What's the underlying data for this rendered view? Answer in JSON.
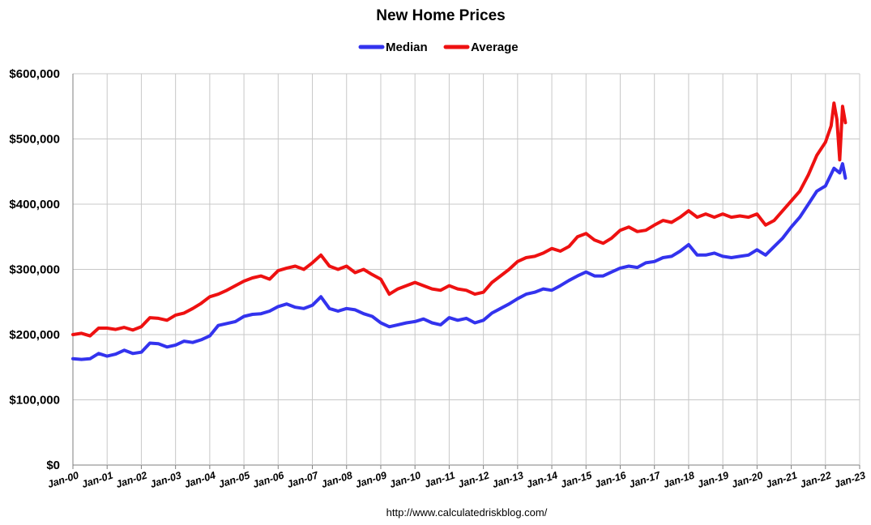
{
  "colors": {
    "median": "#3333ee",
    "average": "#ee1111",
    "grid": "#c8c8c8",
    "axis": "#7f7f7f"
  },
  "chart_data": {
    "type": "line",
    "title": "New Home Prices",
    "source": "http://www.calculatedriskblog.com/",
    "legend_position": "top-center",
    "grid": true,
    "ylim": [
      0,
      600000
    ],
    "yticks": [
      0,
      100000,
      200000,
      300000,
      400000,
      500000,
      600000
    ],
    "ytick_labels": [
      "$0",
      "$100,000",
      "$200,000",
      "$300,000",
      "$400,000",
      "$500,000",
      "$600,000"
    ],
    "xlim": [
      "2000-01",
      "2023-01"
    ],
    "xtick_labels": [
      "Jan-00",
      "Jan-01",
      "Jan-02",
      "Jan-03",
      "Jan-04",
      "Jan-05",
      "Jan-06",
      "Jan-07",
      "Jan-08",
      "Jan-09",
      "Jan-10",
      "Jan-11",
      "Jan-12",
      "Jan-13",
      "Jan-14",
      "Jan-15",
      "Jan-16",
      "Jan-17",
      "Jan-18",
      "Jan-19",
      "Jan-20",
      "Jan-21",
      "Jan-22",
      "Jan-23"
    ],
    "series": [
      {
        "name": "Median",
        "color": "#3333ee",
        "points": [
          [
            "2000-01",
            163000
          ],
          [
            "2000-04",
            162000
          ],
          [
            "2000-07",
            163000
          ],
          [
            "2000-10",
            171000
          ],
          [
            "2001-01",
            167000
          ],
          [
            "2001-04",
            170000
          ],
          [
            "2001-07",
            176000
          ],
          [
            "2001-10",
            171000
          ],
          [
            "2002-01",
            173000
          ],
          [
            "2002-04",
            187000
          ],
          [
            "2002-07",
            186000
          ],
          [
            "2002-10",
            181000
          ],
          [
            "2003-01",
            184000
          ],
          [
            "2003-04",
            190000
          ],
          [
            "2003-07",
            188000
          ],
          [
            "2003-10",
            192000
          ],
          [
            "2004-01",
            198000
          ],
          [
            "2004-04",
            214000
          ],
          [
            "2004-07",
            217000
          ],
          [
            "2004-10",
            220000
          ],
          [
            "2005-01",
            228000
          ],
          [
            "2005-04",
            231000
          ],
          [
            "2005-07",
            232000
          ],
          [
            "2005-10",
            236000
          ],
          [
            "2006-01",
            243000
          ],
          [
            "2006-04",
            247000
          ],
          [
            "2006-07",
            242000
          ],
          [
            "2006-10",
            240000
          ],
          [
            "2007-01",
            245000
          ],
          [
            "2007-04",
            258000
          ],
          [
            "2007-07",
            240000
          ],
          [
            "2007-10",
            236000
          ],
          [
            "2008-01",
            240000
          ],
          [
            "2008-04",
            238000
          ],
          [
            "2008-07",
            232000
          ],
          [
            "2008-10",
            228000
          ],
          [
            "2009-01",
            218000
          ],
          [
            "2009-04",
            212000
          ],
          [
            "2009-07",
            215000
          ],
          [
            "2009-10",
            218000
          ],
          [
            "2010-01",
            220000
          ],
          [
            "2010-04",
            224000
          ],
          [
            "2010-07",
            218000
          ],
          [
            "2010-10",
            215000
          ],
          [
            "2011-01",
            226000
          ],
          [
            "2011-04",
            222000
          ],
          [
            "2011-07",
            225000
          ],
          [
            "2011-10",
            218000
          ],
          [
            "2012-01",
            222000
          ],
          [
            "2012-04",
            233000
          ],
          [
            "2012-07",
            240000
          ],
          [
            "2012-10",
            247000
          ],
          [
            "2013-01",
            255000
          ],
          [
            "2013-04",
            262000
          ],
          [
            "2013-07",
            265000
          ],
          [
            "2013-10",
            270000
          ],
          [
            "2014-01",
            268000
          ],
          [
            "2014-04",
            275000
          ],
          [
            "2014-07",
            283000
          ],
          [
            "2014-10",
            290000
          ],
          [
            "2015-01",
            296000
          ],
          [
            "2015-04",
            290000
          ],
          [
            "2015-07",
            290000
          ],
          [
            "2015-10",
            296000
          ],
          [
            "2016-01",
            302000
          ],
          [
            "2016-04",
            305000
          ],
          [
            "2016-07",
            303000
          ],
          [
            "2016-10",
            310000
          ],
          [
            "2017-01",
            312000
          ],
          [
            "2017-04",
            318000
          ],
          [
            "2017-07",
            320000
          ],
          [
            "2017-10",
            328000
          ],
          [
            "2018-01",
            338000
          ],
          [
            "2018-04",
            322000
          ],
          [
            "2018-07",
            322000
          ],
          [
            "2018-10",
            325000
          ],
          [
            "2019-01",
            320000
          ],
          [
            "2019-04",
            318000
          ],
          [
            "2019-07",
            320000
          ],
          [
            "2019-10",
            322000
          ],
          [
            "2020-01",
            330000
          ],
          [
            "2020-04",
            322000
          ],
          [
            "2020-07",
            335000
          ],
          [
            "2020-10",
            348000
          ],
          [
            "2021-01",
            365000
          ],
          [
            "2021-04",
            380000
          ],
          [
            "2021-07",
            400000
          ],
          [
            "2021-10",
            420000
          ],
          [
            "2022-01",
            428000
          ],
          [
            "2022-04",
            455000
          ],
          [
            "2022-06",
            448000
          ],
          [
            "2022-07",
            462000
          ],
          [
            "2022-08",
            440000
          ]
        ]
      },
      {
        "name": "Average",
        "color": "#ee1111",
        "points": [
          [
            "2000-01",
            200000
          ],
          [
            "2000-04",
            202000
          ],
          [
            "2000-07",
            198000
          ],
          [
            "2000-10",
            210000
          ],
          [
            "2001-01",
            210000
          ],
          [
            "2001-04",
            208000
          ],
          [
            "2001-07",
            211000
          ],
          [
            "2001-10",
            207000
          ],
          [
            "2002-01",
            212000
          ],
          [
            "2002-04",
            226000
          ],
          [
            "2002-07",
            225000
          ],
          [
            "2002-10",
            222000
          ],
          [
            "2003-01",
            230000
          ],
          [
            "2003-04",
            233000
          ],
          [
            "2003-07",
            240000
          ],
          [
            "2003-10",
            248000
          ],
          [
            "2004-01",
            258000
          ],
          [
            "2004-04",
            262000
          ],
          [
            "2004-07",
            268000
          ],
          [
            "2004-10",
            275000
          ],
          [
            "2005-01",
            282000
          ],
          [
            "2005-04",
            287000
          ],
          [
            "2005-07",
            290000
          ],
          [
            "2005-10",
            285000
          ],
          [
            "2006-01",
            298000
          ],
          [
            "2006-04",
            302000
          ],
          [
            "2006-07",
            305000
          ],
          [
            "2006-10",
            300000
          ],
          [
            "2007-01",
            310000
          ],
          [
            "2007-04",
            322000
          ],
          [
            "2007-07",
            305000
          ],
          [
            "2007-10",
            300000
          ],
          [
            "2008-01",
            305000
          ],
          [
            "2008-04",
            295000
          ],
          [
            "2008-07",
            300000
          ],
          [
            "2008-10",
            292000
          ],
          [
            "2009-01",
            285000
          ],
          [
            "2009-04",
            262000
          ],
          [
            "2009-07",
            270000
          ],
          [
            "2009-10",
            275000
          ],
          [
            "2010-01",
            280000
          ],
          [
            "2010-04",
            275000
          ],
          [
            "2010-07",
            270000
          ],
          [
            "2010-10",
            268000
          ],
          [
            "2011-01",
            275000
          ],
          [
            "2011-04",
            270000
          ],
          [
            "2011-07",
            268000
          ],
          [
            "2011-10",
            262000
          ],
          [
            "2012-01",
            265000
          ],
          [
            "2012-04",
            280000
          ],
          [
            "2012-07",
            290000
          ],
          [
            "2012-10",
            300000
          ],
          [
            "2013-01",
            312000
          ],
          [
            "2013-04",
            318000
          ],
          [
            "2013-07",
            320000
          ],
          [
            "2013-10",
            325000
          ],
          [
            "2014-01",
            332000
          ],
          [
            "2014-04",
            328000
          ],
          [
            "2014-07",
            335000
          ],
          [
            "2014-10",
            350000
          ],
          [
            "2015-01",
            355000
          ],
          [
            "2015-04",
            345000
          ],
          [
            "2015-07",
            340000
          ],
          [
            "2015-10",
            348000
          ],
          [
            "2016-01",
            360000
          ],
          [
            "2016-04",
            365000
          ],
          [
            "2016-07",
            358000
          ],
          [
            "2016-10",
            360000
          ],
          [
            "2017-01",
            368000
          ],
          [
            "2017-04",
            375000
          ],
          [
            "2017-07",
            372000
          ],
          [
            "2017-10",
            380000
          ],
          [
            "2018-01",
            390000
          ],
          [
            "2018-04",
            380000
          ],
          [
            "2018-07",
            385000
          ],
          [
            "2018-10",
            380000
          ],
          [
            "2019-01",
            385000
          ],
          [
            "2019-04",
            380000
          ],
          [
            "2019-07",
            382000
          ],
          [
            "2019-10",
            380000
          ],
          [
            "2020-01",
            385000
          ],
          [
            "2020-04",
            368000
          ],
          [
            "2020-07",
            375000
          ],
          [
            "2020-10",
            390000
          ],
          [
            "2021-01",
            405000
          ],
          [
            "2021-04",
            420000
          ],
          [
            "2021-07",
            445000
          ],
          [
            "2021-10",
            475000
          ],
          [
            "2022-01",
            495000
          ],
          [
            "2022-03",
            520000
          ],
          [
            "2022-04",
            555000
          ],
          [
            "2022-05",
            530000
          ],
          [
            "2022-06",
            468000
          ],
          [
            "2022-07",
            550000
          ],
          [
            "2022-08",
            525000
          ]
        ]
      }
    ]
  }
}
